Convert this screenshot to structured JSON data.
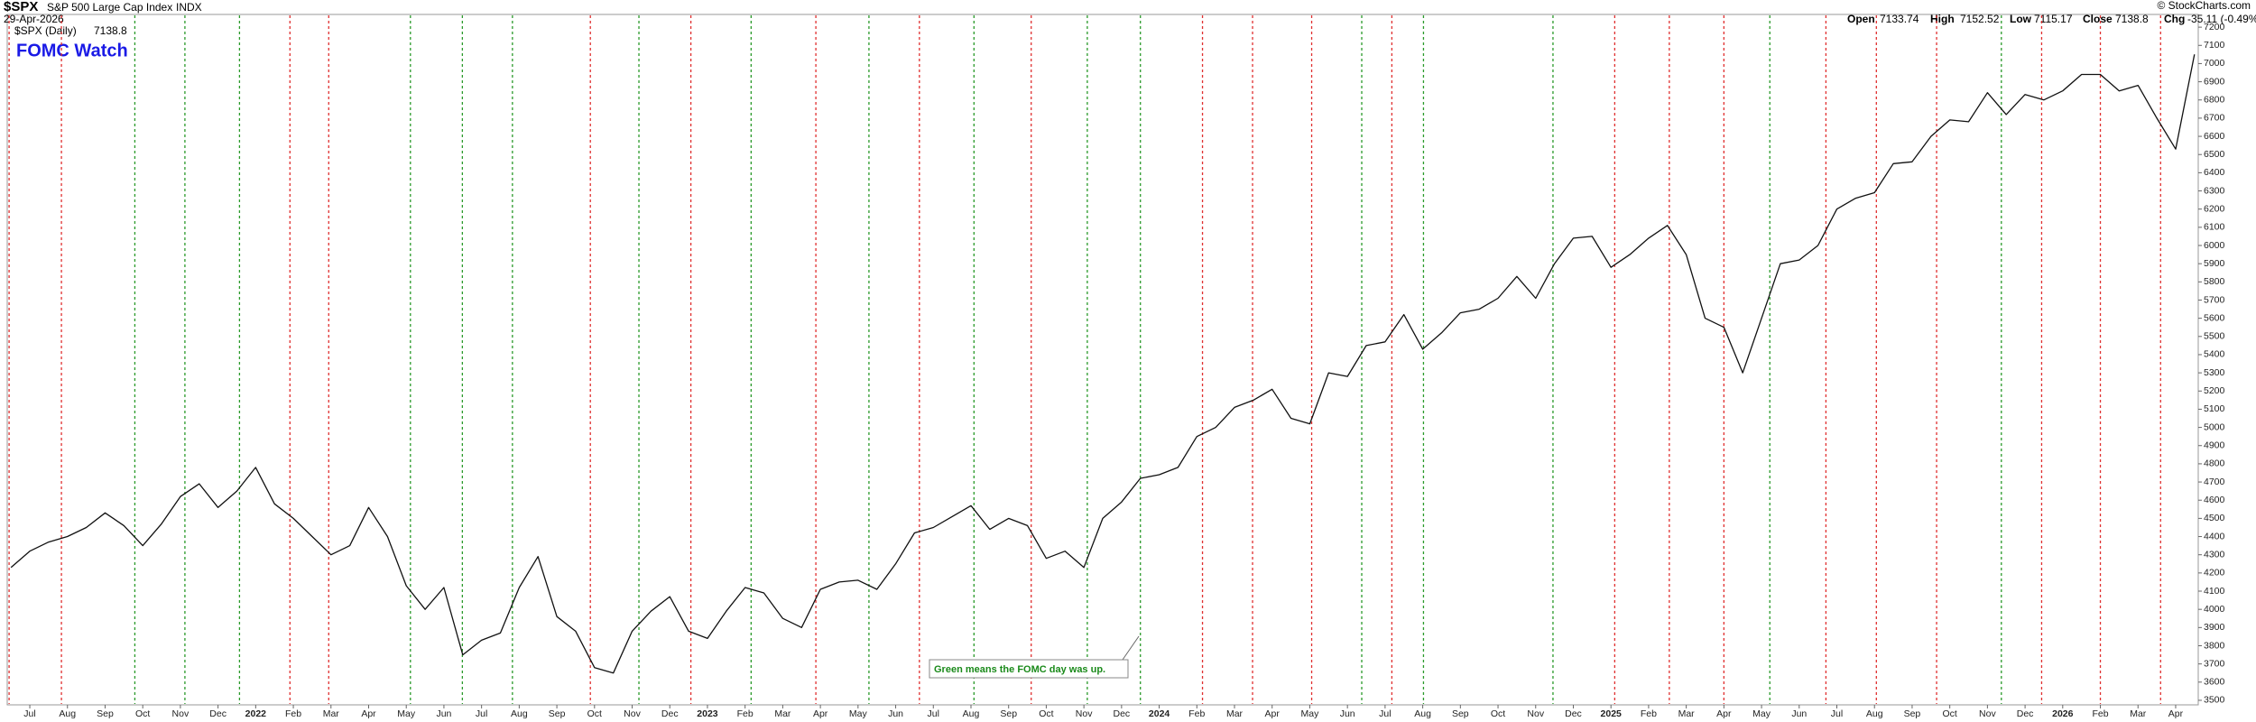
{
  "chart_data": {
    "type": "line",
    "symbol": "$SPX",
    "name": "S&P 500 Large Cap Index",
    "exchange": "INDX",
    "date": "29-Apr-2026",
    "legend": "$SPX (Daily)",
    "last": 7138.8,
    "title": "FOMC Watch",
    "credit": "© StockCharts.com",
    "quote": {
      "open_label": "Open",
      "open": 7133.74,
      "high_label": "High",
      "high": 7152.52,
      "low_label": "Low",
      "low": 7115.17,
      "close_label": "Close",
      "close": 7138.8,
      "chg_label": "Chg",
      "chg": "-35.11 (-0.49%)"
    },
    "annotation": "Green means the FOMC day was up.",
    "x": [
      -0.5,
      0,
      0.5,
      1,
      1.5,
      2,
      2.5,
      3,
      3.5,
      4,
      4.5,
      5,
      5.5,
      6,
      6.5,
      7,
      7.5,
      8,
      8.5,
      9,
      9.5,
      10,
      10.5,
      11,
      11.5,
      12,
      12.5,
      13,
      13.5,
      14,
      14.5,
      15,
      15.5,
      16,
      16.5,
      17,
      17.5,
      18,
      18.5,
      19,
      19.5,
      20,
      20.5,
      21,
      21.5,
      22,
      22.5,
      23,
      23.5,
      24,
      24.5,
      25,
      25.5,
      26,
      26.5,
      27,
      27.5,
      28,
      28.5,
      29,
      29.5,
      30,
      30.5,
      31,
      31.5,
      32,
      32.5,
      33,
      33.5,
      34,
      34.5,
      35,
      35.5,
      36,
      36.5,
      37,
      37.5,
      38,
      38.5,
      39,
      39.5,
      40,
      40.5,
      41,
      41.5,
      42,
      42.5,
      43,
      43.5,
      44,
      44.5,
      45,
      45.5,
      46,
      46.5,
      47,
      47.5,
      48,
      48.5,
      49,
      49.5,
      50,
      50.5,
      51,
      51.5,
      52,
      52.5,
      53,
      53.5,
      54,
      54.5,
      55,
      55.5,
      56,
      56.5,
      57,
      57.5
    ],
    "series": [
      {
        "name": "$SPX",
        "color": "#111111",
        "values": [
          4230,
          4320,
          4370,
          4400,
          4450,
          4530,
          4460,
          4350,
          4470,
          4620,
          4690,
          4560,
          4650,
          4780,
          4580,
          4500,
          4400,
          4300,
          4350,
          4560,
          4400,
          4130,
          4000,
          4120,
          3750,
          3830,
          3870,
          4120,
          4290,
          3960,
          3880,
          3680,
          3650,
          3880,
          3990,
          4070,
          3880,
          3840,
          3990,
          4120,
          4090,
          3950,
          3900,
          4110,
          4150,
          4160,
          4110,
          4250,
          4420,
          4450,
          4510,
          4570,
          4440,
          4500,
          4460,
          4280,
          4320,
          4230,
          4500,
          4590,
          4720,
          4740,
          4780,
          4950,
          5000,
          5110,
          5150,
          5210,
          5050,
          5020,
          5300,
          5280,
          5450,
          5470,
          5620,
          5430,
          5520,
          5630,
          5650,
          5710,
          5830,
          5710,
          5900,
          6040,
          6050,
          5880,
          5950,
          6040,
          6110,
          5950,
          5600,
          5550,
          5300,
          5600,
          5900,
          5920,
          6000,
          6200,
          6260,
          6290,
          6450,
          6460,
          6600,
          6690,
          6680,
          6840,
          6720,
          6830,
          6800,
          6850,
          6940,
          6940,
          6850,
          6880,
          6700,
          6530,
          7050
        ]
      }
    ],
    "xlim": [
      -0.6,
      57.6
    ],
    "xticks": [
      {
        "value": 0,
        "label": "Jul"
      },
      {
        "value": 1,
        "label": "Aug"
      },
      {
        "value": 2,
        "label": "Sep"
      },
      {
        "value": 3,
        "label": "Oct"
      },
      {
        "value": 4,
        "label": "Nov"
      },
      {
        "value": 5,
        "label": "Dec"
      },
      {
        "value": 6,
        "label": "2022"
      },
      {
        "value": 7,
        "label": "Feb"
      },
      {
        "value": 8,
        "label": "Mar"
      },
      {
        "value": 9,
        "label": "Apr"
      },
      {
        "value": 10,
        "label": "May"
      },
      {
        "value": 11,
        "label": "Jun"
      },
      {
        "value": 12,
        "label": "Jul"
      },
      {
        "value": 13,
        "label": "Aug"
      },
      {
        "value": 14,
        "label": "Sep"
      },
      {
        "value": 15,
        "label": "Oct"
      },
      {
        "value": 16,
        "label": "Nov"
      },
      {
        "value": 17,
        "label": "Dec"
      },
      {
        "value": 18,
        "label": "2023"
      },
      {
        "value": 19,
        "label": "Feb"
      },
      {
        "value": 20,
        "label": "Mar"
      },
      {
        "value": 21,
        "label": "Apr"
      },
      {
        "value": 22,
        "label": "May"
      },
      {
        "value": 23,
        "label": "Jun"
      },
      {
        "value": 24,
        "label": "Jul"
      },
      {
        "value": 25,
        "label": "Aug"
      },
      {
        "value": 26,
        "label": "Sep"
      },
      {
        "value": 27,
        "label": "Oct"
      },
      {
        "value": 28,
        "label": "Nov"
      },
      {
        "value": 29,
        "label": "Dec"
      },
      {
        "value": 30,
        "label": "2024"
      },
      {
        "value": 31,
        "label": "Feb"
      },
      {
        "value": 32,
        "label": "Mar"
      },
      {
        "value": 33,
        "label": "Apr"
      },
      {
        "value": 34,
        "label": "May"
      },
      {
        "value": 35,
        "label": "Jun"
      },
      {
        "value": 36,
        "label": "Jul"
      },
      {
        "value": 37,
        "label": "Aug"
      },
      {
        "value": 38,
        "label": "Sep"
      },
      {
        "value": 39,
        "label": "Oct"
      },
      {
        "value": 40,
        "label": "Nov"
      },
      {
        "value": 41,
        "label": "Dec"
      },
      {
        "value": 42,
        "label": "2025"
      },
      {
        "value": 43,
        "label": "Feb"
      },
      {
        "value": 44,
        "label": "Mar"
      },
      {
        "value": 45,
        "label": "Apr"
      },
      {
        "value": 46,
        "label": "May"
      },
      {
        "value": 47,
        "label": "Jun"
      },
      {
        "value": 48,
        "label": "Jul"
      },
      {
        "value": 49,
        "label": "Aug"
      },
      {
        "value": 50,
        "label": "Sep"
      },
      {
        "value": 51,
        "label": "Oct"
      },
      {
        "value": 52,
        "label": "Nov"
      },
      {
        "value": 53,
        "label": "Dec"
      },
      {
        "value": 54,
        "label": "2026"
      },
      {
        "value": 55,
        "label": "Feb"
      },
      {
        "value": 56,
        "label": "Mar"
      },
      {
        "value": 57,
        "label": "Apr"
      }
    ],
    "ylim": [
      3475,
      7270
    ],
    "yticks": [
      3500,
      3600,
      3700,
      3800,
      3900,
      4000,
      4100,
      4200,
      4300,
      4400,
      4500,
      4600,
      4700,
      4800,
      4900,
      5000,
      5100,
      5200,
      5300,
      5400,
      5500,
      5600,
      5700,
      5800,
      5900,
      6000,
      6100,
      6200,
      6300,
      6400,
      6500,
      6600,
      6700,
      6800,
      6900,
      7000,
      7100,
      7200
    ],
    "fomc": {
      "up_color": "#2a9a2a",
      "down_color": "#e03030",
      "x": [
        -0.55,
        0.84,
        2.79,
        4.12,
        5.57,
        6.91,
        7.94,
        10.11,
        11.49,
        12.82,
        14.89,
        16.18,
        17.56,
        19.16,
        20.88,
        22.29,
        23.63,
        25.08,
        26.6,
        28.09,
        29.5,
        31.15,
        32.48,
        34.05,
        35.38,
        36.18,
        37.02,
        40.46,
        42.1,
        43.55,
        45.0,
        46.22,
        47.71,
        49.05,
        50.65,
        52.37,
        53.44,
        55.0,
        56.6
      ],
      "up": [
        false,
        false,
        true,
        true,
        true,
        false,
        false,
        true,
        true,
        true,
        false,
        true,
        false,
        true,
        false,
        true,
        false,
        true,
        false,
        true,
        true,
        false,
        false,
        false,
        true,
        false,
        true,
        true,
        false,
        false,
        false,
        true,
        false,
        false,
        false,
        true,
        false,
        false,
        false
      ]
    }
  }
}
